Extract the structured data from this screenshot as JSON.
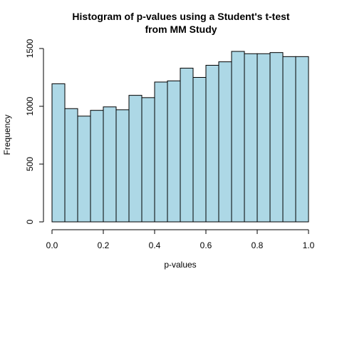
{
  "chart_data": {
    "type": "bar",
    "title_lines": [
      "Histogram of p-values using a Student's t-test",
      "from MM Study"
    ],
    "xlabel": "p-values",
    "ylabel": "Frequency",
    "bin_edges": [
      0.0,
      0.05,
      0.1,
      0.15,
      0.2,
      0.25,
      0.3,
      0.35,
      0.4,
      0.45,
      0.5,
      0.55,
      0.6,
      0.65,
      0.7,
      0.75,
      0.8,
      0.85,
      0.9,
      0.95,
      1.0
    ],
    "values": [
      1195,
      980,
      915,
      965,
      995,
      970,
      1095,
      1075,
      1210,
      1220,
      1330,
      1250,
      1355,
      1385,
      1475,
      1455,
      1455,
      1465,
      1430,
      1430
    ],
    "xlim": [
      0.0,
      1.0
    ],
    "ylim": [
      0,
      1500
    ],
    "xticks": [
      0.0,
      0.2,
      0.4,
      0.6,
      0.8,
      1.0
    ],
    "xtick_labels": [
      "0.0",
      "0.2",
      "0.4",
      "0.6",
      "0.8",
      "1.0"
    ],
    "yticks": [
      0,
      500,
      1000,
      1500
    ],
    "ytick_labels": [
      "0",
      "500",
      "1000",
      "1500"
    ],
    "bar_color": "#add8e6",
    "edge_color": "#000000",
    "grid": false,
    "legend": "none"
  }
}
